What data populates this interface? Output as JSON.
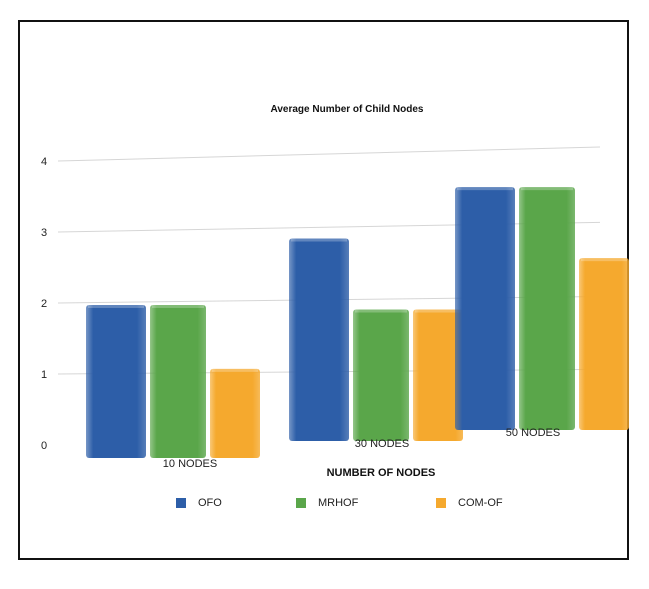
{
  "chart_data": {
    "type": "bar",
    "title": "Average Number of Child Nodes",
    "xlabel": "NUMBER OF NODES",
    "ylabel": "",
    "categories": [
      "10 NODES",
      "30 NODES",
      "50 NODES"
    ],
    "ylim": [
      0,
      4
    ],
    "yticks": [
      0,
      1,
      2,
      3,
      4
    ],
    "grid": true,
    "legend_position": "bottom",
    "series": [
      {
        "name": "OFO",
        "color": "#2d5ea8",
        "values": [
          2.0,
          2.9,
          3.6
        ]
      },
      {
        "name": "MRHOF",
        "color": "#5aa64a",
        "values": [
          2.0,
          1.9,
          3.6
        ]
      },
      {
        "name": "COM-OF",
        "color": "#f5a92e",
        "values": [
          1.1,
          1.9,
          2.6
        ]
      }
    ]
  }
}
